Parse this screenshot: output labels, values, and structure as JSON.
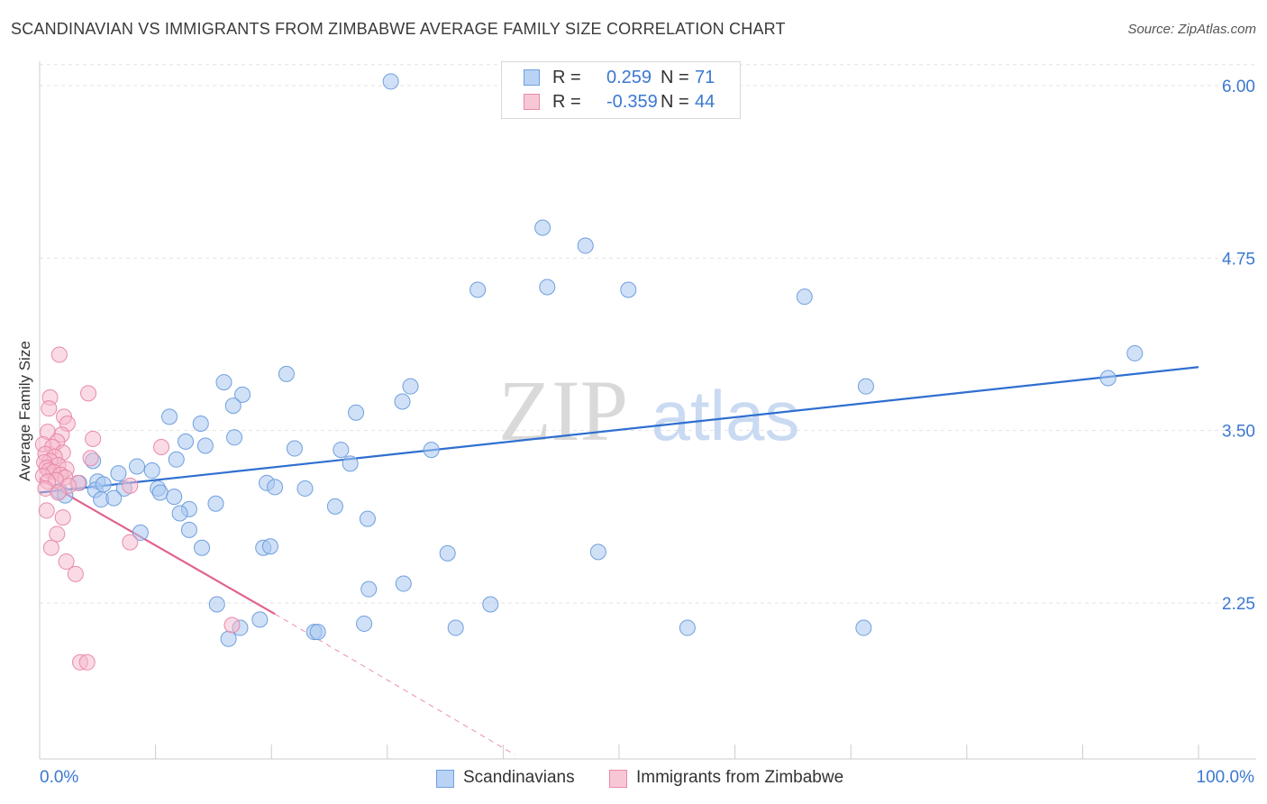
{
  "title": "SCANDINAVIAN VS IMMIGRANTS FROM ZIMBABWE AVERAGE FAMILY SIZE CORRELATION CHART",
  "source": "Source: ZipAtlas.com",
  "watermark": {
    "zip": "ZIP",
    "atlas": "atlas"
  },
  "legend": {
    "rows": [
      {
        "r_label": "R =",
        "r_value": "0.259",
        "n_label": "N =",
        "n_value": "71"
      },
      {
        "r_label": "R =",
        "r_value": "-0.359",
        "n_label": "N =",
        "n_value": "44"
      }
    ]
  },
  "x_axis": {
    "min_label": "0.0%",
    "max_label": "100.0%"
  },
  "colors": {
    "blue_fill": "#aac8f0",
    "blue_stroke": "#6f9fde",
    "blue_line": "#2f6fd0",
    "pink_fill": "#f6b8cb",
    "pink_stroke": "#e98aa8",
    "pink_line": "#e0628e",
    "grid": "#e3e3e3",
    "tick_text": "#3b78d0"
  },
  "chart_data": {
    "type": "scatter",
    "title": "SCANDINAVIAN VS IMMIGRANTS FROM ZIMBABWE AVERAGE FAMILY SIZE CORRELATION CHART",
    "xlabel": "",
    "ylabel": "Average Family Size",
    "xlim": [
      0,
      100
    ],
    "ylim": [
      1.1,
      6.1
    ],
    "y_ticks": [
      2.25,
      3.5,
      4.75,
      6.0
    ],
    "y_tick_labels": [
      "2.25",
      "3.50",
      "4.75",
      "6.00"
    ],
    "x_tick_labels": [
      "0.0%",
      "100.0%"
    ],
    "grid": true,
    "series": [
      {
        "name": "Scandinavians",
        "r": 0.259,
        "n": 71,
        "trend": {
          "x": [
            0,
            100
          ],
          "y": [
            3.05,
            3.96
          ]
        },
        "points": [
          [
            30.3,
            6.03
          ],
          [
            43.4,
            4.97
          ],
          [
            47.1,
            4.84
          ],
          [
            37.8,
            4.52
          ],
          [
            43.8,
            4.54
          ],
          [
            50.8,
            4.52
          ],
          [
            66.0,
            4.47
          ],
          [
            92.2,
            3.88
          ],
          [
            71.3,
            3.82
          ],
          [
            21.3,
            3.91
          ],
          [
            15.9,
            3.85
          ],
          [
            32.0,
            3.82
          ],
          [
            17.5,
            3.76
          ],
          [
            16.7,
            3.68
          ],
          [
            31.3,
            3.71
          ],
          [
            27.3,
            3.63
          ],
          [
            13.9,
            3.55
          ],
          [
            11.2,
            3.6
          ],
          [
            12.6,
            3.42
          ],
          [
            16.8,
            3.45
          ],
          [
            14.3,
            3.39
          ],
          [
            22.0,
            3.37
          ],
          [
            33.8,
            3.36
          ],
          [
            26.0,
            3.36
          ],
          [
            11.8,
            3.29
          ],
          [
            26.8,
            3.26
          ],
          [
            8.4,
            3.24
          ],
          [
            4.6,
            3.28
          ],
          [
            9.7,
            3.21
          ],
          [
            6.8,
            3.19
          ],
          [
            5.0,
            3.13
          ],
          [
            19.6,
            3.12
          ],
          [
            20.3,
            3.09
          ],
          [
            22.9,
            3.08
          ],
          [
            3.4,
            3.12
          ],
          [
            4.8,
            3.07
          ],
          [
            7.3,
            3.08
          ],
          [
            10.2,
            3.08
          ],
          [
            10.4,
            3.05
          ],
          [
            1.7,
            3.06
          ],
          [
            2.2,
            3.03
          ],
          [
            5.5,
            3.11
          ],
          [
            5.3,
            3.0
          ],
          [
            11.6,
            3.02
          ],
          [
            6.4,
            3.01
          ],
          [
            15.2,
            2.97
          ],
          [
            12.9,
            2.93
          ],
          [
            25.5,
            2.95
          ],
          [
            12.1,
            2.9
          ],
          [
            28.3,
            2.86
          ],
          [
            8.7,
            2.76
          ],
          [
            12.9,
            2.78
          ],
          [
            14.0,
            2.65
          ],
          [
            19.3,
            2.65
          ],
          [
            19.9,
            2.66
          ],
          [
            35.2,
            2.61
          ],
          [
            48.2,
            2.62
          ],
          [
            31.4,
            2.39
          ],
          [
            28.4,
            2.35
          ],
          [
            38.9,
            2.24
          ],
          [
            15.3,
            2.24
          ],
          [
            19.0,
            2.13
          ],
          [
            28.0,
            2.1
          ],
          [
            35.9,
            2.07
          ],
          [
            23.7,
            2.04
          ],
          [
            55.9,
            2.07
          ],
          [
            17.3,
            2.07
          ],
          [
            71.1,
            2.07
          ],
          [
            94.5,
            4.06
          ],
          [
            24.0,
            2.04
          ],
          [
            16.3,
            1.99
          ]
        ]
      },
      {
        "name": "Immigrants from Zimbabwe",
        "r": -0.359,
        "n": 44,
        "trend": {
          "x": [
            0,
            20.3
          ],
          "y": [
            3.15,
            2.17
          ]
        },
        "trend_dashed": {
          "x": [
            20.3,
            41.0
          ],
          "y": [
            2.17,
            1.15
          ]
        },
        "points": [
          [
            1.7,
            4.05
          ],
          [
            0.9,
            3.74
          ],
          [
            4.2,
            3.77
          ],
          [
            0.8,
            3.66
          ],
          [
            2.1,
            3.6
          ],
          [
            2.4,
            3.55
          ],
          [
            0.7,
            3.49
          ],
          [
            1.9,
            3.47
          ],
          [
            4.6,
            3.44
          ],
          [
            1.5,
            3.42
          ],
          [
            0.3,
            3.4
          ],
          [
            1.1,
            3.38
          ],
          [
            2.0,
            3.34
          ],
          [
            0.5,
            3.33
          ],
          [
            1.3,
            3.31
          ],
          [
            4.4,
            3.3
          ],
          [
            0.9,
            3.28
          ],
          [
            10.5,
            3.38
          ],
          [
            0.4,
            3.27
          ],
          [
            1.6,
            3.25
          ],
          [
            0.6,
            3.23
          ],
          [
            2.3,
            3.22
          ],
          [
            0.8,
            3.21
          ],
          [
            1.2,
            3.2
          ],
          [
            1.8,
            3.18
          ],
          [
            0.3,
            3.17
          ],
          [
            2.2,
            3.16
          ],
          [
            1.4,
            3.14
          ],
          [
            0.7,
            3.13
          ],
          [
            3.3,
            3.12
          ],
          [
            2.5,
            3.1
          ],
          [
            7.8,
            3.1
          ],
          [
            0.5,
            3.08
          ],
          [
            1.6,
            3.05
          ],
          [
            0.6,
            2.92
          ],
          [
            2.0,
            2.87
          ],
          [
            1.0,
            2.65
          ],
          [
            1.5,
            2.75
          ],
          [
            2.3,
            2.55
          ],
          [
            3.1,
            2.46
          ],
          [
            7.8,
            2.69
          ],
          [
            16.6,
            2.09
          ],
          [
            3.5,
            1.82
          ],
          [
            4.1,
            1.82
          ]
        ]
      }
    ]
  },
  "bottom_legend": [
    {
      "label": "Scandinavians"
    },
    {
      "label": "Immigrants from Zimbabwe"
    }
  ]
}
